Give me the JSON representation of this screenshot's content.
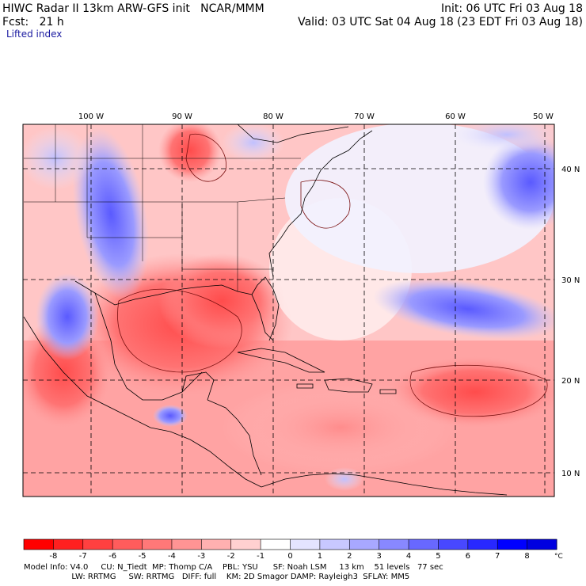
{
  "header": {
    "left_line1": "HIWC Radar II 13km ARW-GFS init   NCAR/MMM",
    "left_line2": "Fcst:   21 h",
    "right_line1": "Init: 06 UTC Fri 03 Aug 18",
    "right_line2": "Valid: 03 UTC Sat 04 Aug 18 (23 EDT Fri 03 Aug 18)",
    "field_name": "Lifted index"
  },
  "map": {
    "lon_labels": [
      "100 W",
      "90 W",
      "80 W",
      "70 W",
      "60 W",
      "50 W"
    ],
    "lat_labels": [
      "40 N",
      "30 N",
      "20 N",
      "10 N"
    ]
  },
  "colorbar": {
    "unit": "°C",
    "tick_labels": [
      "-8",
      "-7",
      "-6",
      "-5",
      "-4",
      "-3",
      "-2",
      "-1",
      "0",
      "1",
      "2",
      "3",
      "4",
      "5",
      "6",
      "7",
      "8"
    ],
    "colors": [
      "#ff0000",
      "#ff2020",
      "#ff4040",
      "#ff5c5c",
      "#ff7878",
      "#ff9494",
      "#ffb0b0",
      "#ffd0d0",
      "#ffffff",
      "#e4e4ff",
      "#c8c8ff",
      "#a8a8ff",
      "#8888ff",
      "#6868ff",
      "#4848ff",
      "#2828ff",
      "#0000ff",
      "#0000e0"
    ]
  },
  "footer": {
    "line1": "Model Info: V4.0     CU: N_Tiedt  MP: Thomp C/A    PBL: YSU      SF: Noah LSM     13 km    51 levels   77 sec",
    "line2": "                   LW: RRTMG     SW: RRTMG   DIFF: full    KM: 2D Smagor DAMP: Rayleigh3  SFLAY: MM5"
  }
}
